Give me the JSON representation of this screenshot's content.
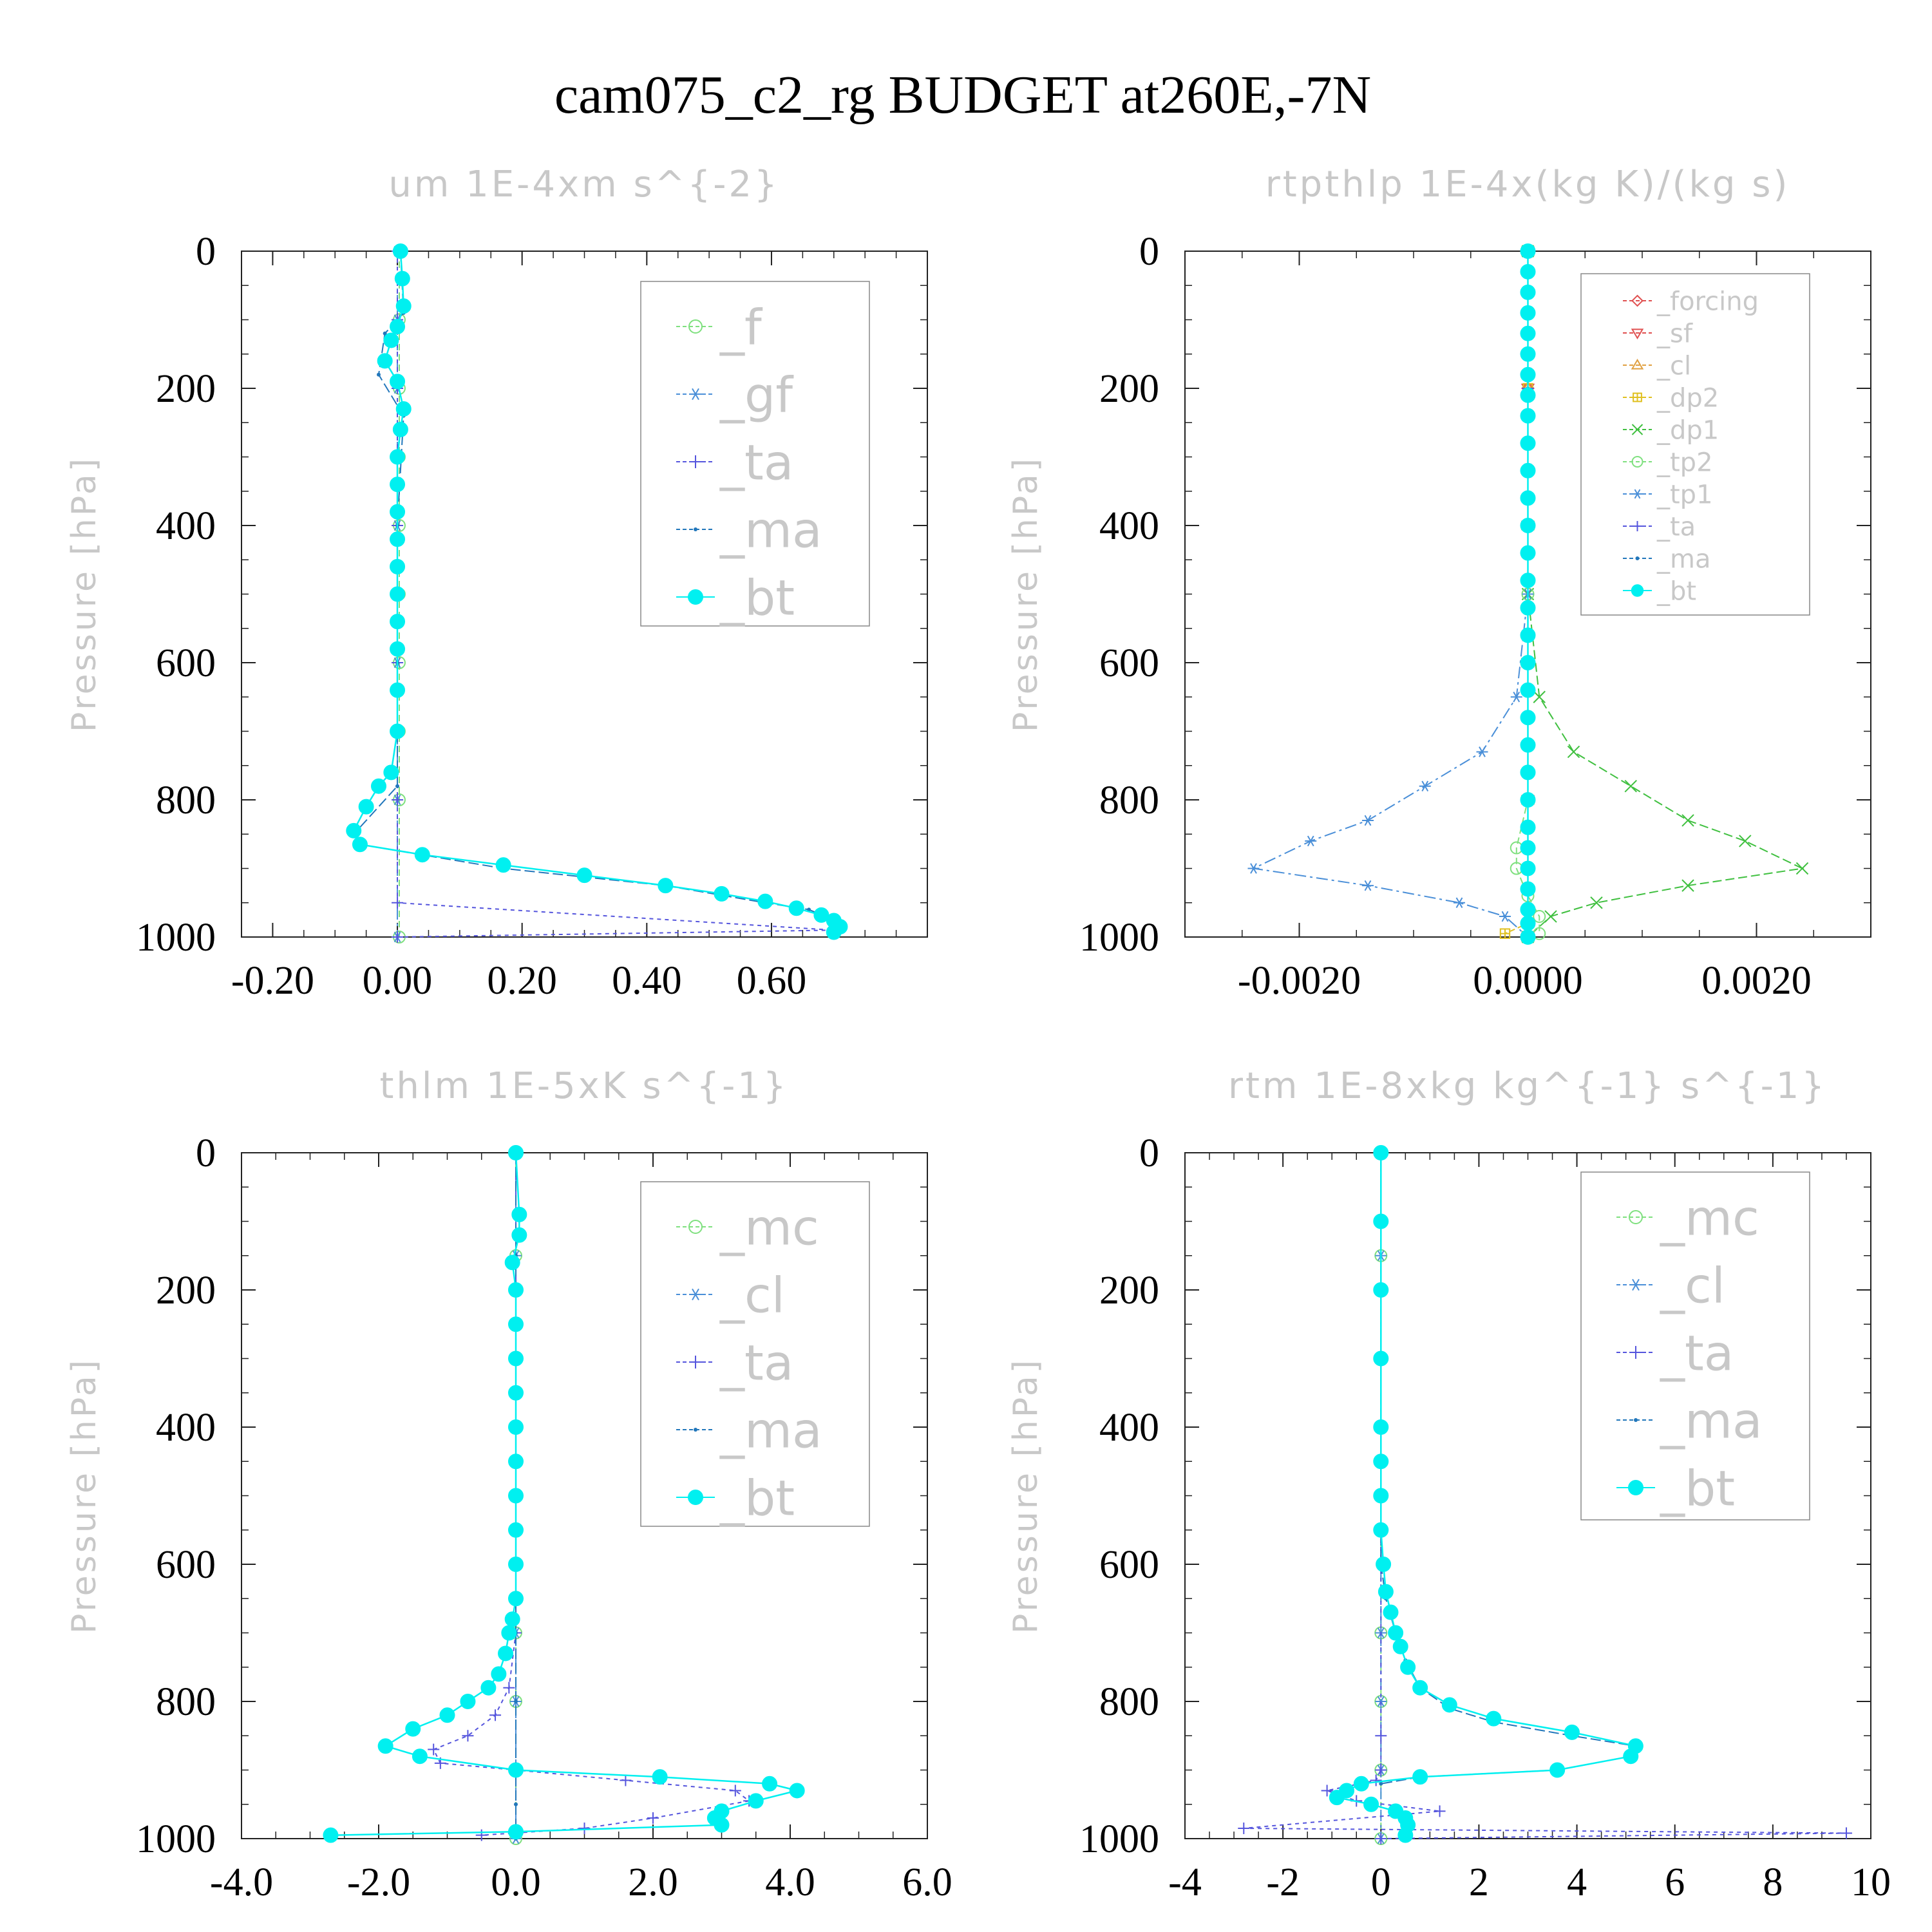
{
  "figure": {
    "title": "cam075_c2_rg  BUDGET at260E,-7N"
  },
  "chart_data": [
    {
      "type": "line",
      "title": "um   1E-4xm s^{-2}",
      "ylabel": "Pressure [hPa]",
      "xlim": [
        -0.25,
        0.85
      ],
      "ylim": [
        1000,
        0
      ],
      "xticks": [
        -0.2,
        0.0,
        0.2,
        0.4,
        0.6
      ],
      "xtick_labels": [
        "-0.20",
        "0.00",
        "0.20",
        "0.40",
        "0.60"
      ],
      "yticks": [
        0,
        200,
        400,
        600,
        800,
        1000
      ],
      "ytick_labels": [
        "0",
        "200",
        "400",
        "600",
        "800",
        "1000"
      ],
      "legend_position": "top-right",
      "legend_size": "large",
      "series": [
        {
          "name": "_f",
          "color": "#7fe07f",
          "marker": "circle-open",
          "x": [
            0.003,
            0.003,
            0.003,
            0.003,
            0.003,
            0.003,
            0.003,
            0.003,
            0.003,
            0.003
          ],
          "y": [
            0,
            100,
            200,
            300,
            400,
            500,
            600,
            700,
            800,
            1000
          ]
        },
        {
          "name": "_gf",
          "color": "#4a8fd8",
          "marker": "asterisk",
          "x": [
            0.0,
            0.0,
            0.0,
            0.0,
            0.0,
            0.0,
            0.0,
            0.0,
            0.0,
            0.0
          ],
          "y": [
            0,
            100,
            200,
            300,
            400,
            500,
            600,
            700,
            800,
            1000
          ]
        },
        {
          "name": "_ta",
          "color": "#5555dd",
          "marker": "plus",
          "x": [
            0.0,
            0.0,
            0.0,
            0.0,
            0.0,
            0.0,
            0.0,
            0.0,
            0.0,
            0.0,
            0.7,
            0.0
          ],
          "y": [
            0,
            100,
            200,
            300,
            400,
            500,
            600,
            700,
            800,
            950,
            990,
            1000
          ]
        },
        {
          "name": "_ma",
          "color": "#2277bb",
          "marker": "dot",
          "x": [
            0.005,
            0.01,
            -0.02,
            -0.03,
            0.01,
            0.0,
            0.0,
            0.0,
            0.0,
            -0.07,
            -0.06,
            0.17,
            0.43,
            0.59,
            0.66,
            0.7,
            0.71
          ],
          "y": [
            0,
            90,
            120,
            180,
            240,
            400,
            600,
            700,
            780,
            850,
            865,
            900,
            925,
            950,
            960,
            975,
            985
          ]
        },
        {
          "name": "_bt",
          "color": "#00f0f0",
          "marker": "filled-circle",
          "x": [
            0.005,
            0.008,
            0.01,
            0.0,
            -0.01,
            -0.02,
            0.0,
            0.01,
            0.005,
            0.0,
            0.0,
            0.0,
            0.0,
            0.0,
            0.0,
            0.0,
            0.0,
            0.0,
            0.0,
            -0.01,
            -0.03,
            -0.05,
            -0.07,
            -0.06,
            0.04,
            0.17,
            0.3,
            0.43,
            0.52,
            0.59,
            0.64,
            0.68,
            0.7,
            0.71,
            0.7
          ],
          "y": [
            0,
            40,
            80,
            110,
            130,
            160,
            190,
            230,
            260,
            300,
            340,
            380,
            420,
            460,
            500,
            540,
            580,
            640,
            700,
            760,
            780,
            810,
            845,
            865,
            880,
            895,
            910,
            925,
            937,
            948,
            958,
            968,
            976,
            985,
            993
          ]
        }
      ]
    },
    {
      "type": "line",
      "title": "rtpthlp   1E-4x(kg K)/(kg s)",
      "ylabel": "Pressure [hPa]",
      "xlim": [
        -0.003,
        0.003
      ],
      "ylim": [
        1000,
        0
      ],
      "xticks": [
        -0.002,
        0.0,
        0.002
      ],
      "xtick_labels": [
        "-0.0020",
        "0.0000",
        "0.0020"
      ],
      "yticks": [
        0,
        200,
        400,
        600,
        800,
        1000
      ],
      "ytick_labels": [
        "0",
        "200",
        "400",
        "600",
        "800",
        "1000"
      ],
      "legend_position": "top-right",
      "legend_size": "small",
      "series": [
        {
          "name": "_forcing",
          "color": "#e05050",
          "marker": "diamond-open",
          "x": [
            0,
            0,
            0,
            0,
            0,
            0
          ],
          "y": [
            0,
            200,
            400,
            600,
            800,
            1000
          ]
        },
        {
          "name": "_sf",
          "color": "#e05050",
          "marker": "triangle-down",
          "x": [
            0,
            0,
            0,
            0,
            0,
            0
          ],
          "y": [
            0,
            200,
            400,
            600,
            800,
            1000
          ]
        },
        {
          "name": "_cl",
          "color": "#e0a040",
          "marker": "triangle-up",
          "x": [
            0,
            0,
            0,
            0,
            0,
            0
          ],
          "y": [
            0,
            200,
            400,
            600,
            800,
            1000
          ]
        },
        {
          "name": "_dp2",
          "color": "#e0c020",
          "marker": "square-plus",
          "x": [
            0,
            0,
            0,
            0,
            0,
            0,
            -0.0002
          ],
          "y": [
            0,
            200,
            400,
            600,
            800,
            980,
            995
          ]
        },
        {
          "name": "_dp1",
          "color": "#40c040",
          "marker": "cross",
          "x": [
            0.0,
            0.0,
            0.0001,
            0.0004,
            0.0009,
            0.0014,
            0.0019,
            0.0024,
            0.0014,
            0.0006,
            0.0002,
            0.0
          ],
          "y": [
            0,
            500,
            650,
            730,
            780,
            830,
            860,
            900,
            925,
            950,
            970,
            1000
          ]
        },
        {
          "name": "_tp2",
          "color": "#7fe07f",
          "marker": "circle-open",
          "x": [
            0.0,
            0.0,
            0.0,
            -0.0001,
            -0.0001,
            0.0,
            0.0001,
            0.0001
          ],
          "y": [
            0,
            500,
            800,
            870,
            900,
            940,
            970,
            995
          ]
        },
        {
          "name": "_tp1",
          "color": "#4a8fd8",
          "marker": "asterisk",
          "x": [
            0.0,
            0.0,
            -0.0001,
            -0.0004,
            -0.0009,
            -0.0014,
            -0.0019,
            -0.0024,
            -0.0014,
            -0.0006,
            -0.0002,
            0.0
          ],
          "y": [
            0,
            500,
            650,
            730,
            780,
            830,
            860,
            900,
            925,
            950,
            970,
            1000
          ]
        },
        {
          "name": "_ta",
          "color": "#5555dd",
          "marker": "plus",
          "x": [
            0,
            0,
            0,
            0,
            0,
            0
          ],
          "y": [
            0,
            200,
            400,
            600,
            800,
            1000
          ]
        },
        {
          "name": "_ma",
          "color": "#2277bb",
          "marker": "dot",
          "x": [
            0,
            0,
            0,
            0,
            0,
            0
          ],
          "y": [
            0,
            200,
            400,
            600,
            800,
            1000
          ]
        },
        {
          "name": "_bt",
          "color": "#00f0f0",
          "marker": "filled-circle",
          "x": [
            0,
            0,
            0,
            0,
            0,
            0,
            0,
            0,
            0,
            0,
            0,
            0,
            0,
            0,
            0,
            0,
            0,
            0,
            0,
            0,
            0,
            0,
            0,
            0,
            0,
            0,
            0,
            0,
            0,
            0
          ],
          "y": [
            0,
            30,
            60,
            90,
            120,
            150,
            180,
            210,
            240,
            280,
            320,
            360,
            400,
            440,
            480,
            520,
            560,
            600,
            640,
            680,
            720,
            760,
            800,
            840,
            870,
            900,
            930,
            960,
            980,
            1000
          ]
        }
      ]
    },
    {
      "type": "line",
      "title": "thlm   1E-5xK s^{-1}",
      "ylabel": "Pressure [hPa]",
      "xlim": [
        -4.0,
        6.0
      ],
      "ylim": [
        1000,
        0
      ],
      "xticks": [
        -4.0,
        -2.0,
        0.0,
        2.0,
        4.0,
        6.0
      ],
      "xtick_labels": [
        "-4.0",
        "-2.0",
        "0.0",
        "2.0",
        "4.0",
        "6.0"
      ],
      "yticks": [
        0,
        200,
        400,
        600,
        800,
        1000
      ],
      "ytick_labels": [
        "0",
        "200",
        "400",
        "600",
        "800",
        "1000"
      ],
      "legend_position": "top-right",
      "legend_size": "large",
      "series": [
        {
          "name": "_mc",
          "color": "#7fe07f",
          "marker": "circle-open",
          "x": [
            0.0,
            0.0,
            0.0,
            0.0,
            0.0,
            0.0,
            0.0,
            0.0
          ],
          "y": [
            0,
            150,
            300,
            500,
            700,
            800,
            900,
            1000
          ]
        },
        {
          "name": "_cl",
          "color": "#4a8fd8",
          "marker": "asterisk",
          "x": [
            0.0,
            0.0,
            0.0,
            0.0,
            0.0,
            0.0,
            0.0,
            0.0
          ],
          "y": [
            0,
            150,
            300,
            500,
            700,
            800,
            900,
            1000
          ]
        },
        {
          "name": "_ta",
          "color": "#5555dd",
          "marker": "plus",
          "x": [
            0.0,
            0.0,
            -0.1,
            -0.3,
            -0.7,
            -1.2,
            -1.1,
            0.0,
            1.6,
            3.2,
            3.4,
            2.0,
            1.0,
            -0.5
          ],
          "y": [
            0,
            700,
            780,
            820,
            850,
            870,
            890,
            900,
            915,
            930,
            945,
            970,
            985,
            995
          ]
        },
        {
          "name": "_ma",
          "color": "#2277bb",
          "marker": "dot",
          "x": [
            0,
            0,
            0,
            0,
            0,
            0,
            0,
            0,
            0
          ],
          "y": [
            0,
            150,
            300,
            500,
            700,
            800,
            900,
            950,
            1000
          ]
        },
        {
          "name": "_bt",
          "color": "#00f0f0",
          "marker": "filled-circle",
          "x": [
            0.0,
            0.05,
            0.05,
            -0.05,
            0.0,
            0.0,
            0.0,
            0.0,
            0.0,
            0.0,
            0.0,
            0.0,
            0.0,
            0.0,
            -0.05,
            -0.1,
            -0.15,
            -0.25,
            -0.4,
            -0.7,
            -1.0,
            -1.5,
            -1.9,
            -1.4,
            0.0,
            2.1,
            3.7,
            4.1,
            3.5,
            3.0,
            2.9,
            3.0,
            0.0,
            -2.7
          ],
          "y": [
            0,
            90,
            120,
            160,
            200,
            250,
            300,
            350,
            400,
            450,
            500,
            550,
            600,
            650,
            680,
            700,
            730,
            760,
            780,
            800,
            820,
            840,
            865,
            880,
            900,
            910,
            920,
            930,
            945,
            960,
            970,
            980,
            990,
            995
          ]
        }
      ]
    },
    {
      "type": "line",
      "title": "rtm   1E-8xkg kg^{-1} s^{-1}",
      "ylabel": "Pressure [hPa]",
      "xlim": [
        -4,
        10
      ],
      "ylim": [
        1000,
        0
      ],
      "xticks": [
        -4,
        -2,
        0,
        2,
        4,
        6,
        8,
        10
      ],
      "xtick_labels": [
        "-4",
        "-2",
        "0",
        "2",
        "4",
        "6",
        "8",
        "10"
      ],
      "yticks": [
        0,
        200,
        400,
        600,
        800,
        1000
      ],
      "ytick_labels": [
        "0",
        "200",
        "400",
        "600",
        "800",
        "1000"
      ],
      "legend_position": "top-right",
      "legend_size": "large",
      "series": [
        {
          "name": "_mc",
          "color": "#7fe07f",
          "marker": "circle-open",
          "x": [
            0,
            0,
            0,
            0,
            0,
            0,
            0,
            0
          ],
          "y": [
            0,
            150,
            300,
            500,
            700,
            800,
            900,
            1000
          ]
        },
        {
          "name": "_cl",
          "color": "#4a8fd8",
          "marker": "asterisk",
          "x": [
            0,
            0,
            0,
            0,
            0,
            0,
            0,
            0
          ],
          "y": [
            0,
            150,
            300,
            500,
            700,
            800,
            900,
            1000
          ]
        },
        {
          "name": "_ta",
          "color": "#5555dd",
          "marker": "plus",
          "x": [
            0.0,
            0.0,
            0.0,
            -0.1,
            -1.1,
            -0.5,
            1.2,
            -2.8,
            9.5,
            0.0
          ],
          "y": [
            0,
            850,
            900,
            915,
            930,
            945,
            960,
            985,
            992,
            1000
          ]
        },
        {
          "name": "_ma",
          "color": "#2277bb",
          "marker": "dot",
          "x": [
            0.0,
            0.0,
            0.1,
            0.3,
            0.5,
            0.8,
            1.4,
            2.3,
            3.9,
            5.2,
            5.1,
            3.6,
            0.8,
            0.0
          ],
          "y": [
            0,
            600,
            650,
            700,
            740,
            780,
            810,
            830,
            850,
            865,
            880,
            900,
            910,
            920
          ]
        },
        {
          "name": "_bt",
          "color": "#00f0f0",
          "marker": "filled-circle",
          "x": [
            0.0,
            0.0,
            0.0,
            0.0,
            0.0,
            0.0,
            0.0,
            0.0,
            0.05,
            0.1,
            0.2,
            0.3,
            0.4,
            0.55,
            0.8,
            1.4,
            2.3,
            3.9,
            5.2,
            5.1,
            3.6,
            0.8,
            -0.4,
            -0.7,
            -0.9,
            -0.2,
            0.3,
            0.5,
            0.55,
            0.5
          ],
          "y": [
            0,
            100,
            200,
            300,
            400,
            450,
            500,
            550,
            600,
            640,
            670,
            700,
            720,
            750,
            780,
            805,
            825,
            845,
            865,
            880,
            900,
            910,
            920,
            930,
            940,
            950,
            960,
            970,
            980,
            995
          ]
        }
      ]
    }
  ]
}
